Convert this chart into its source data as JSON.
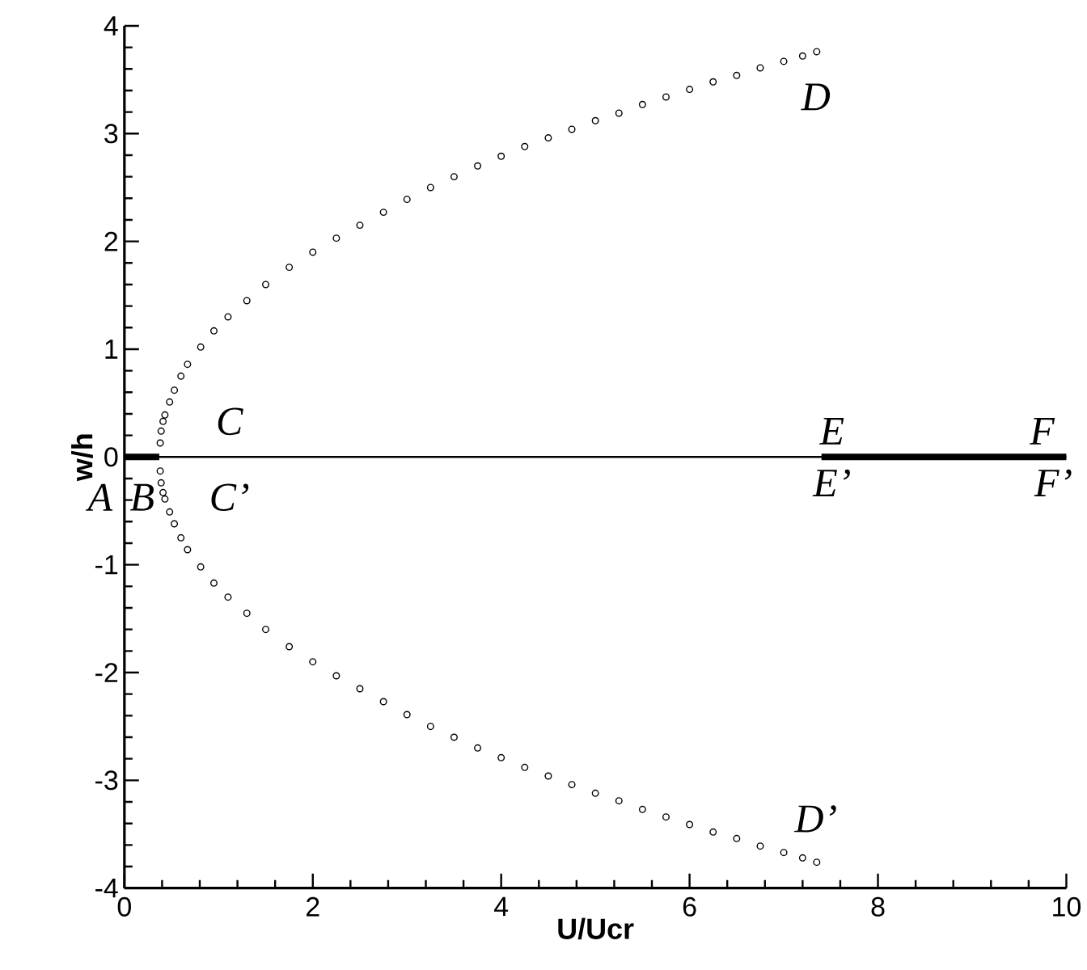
{
  "chart_data": {
    "type": "scatter",
    "xlabel": "U/Ucr",
    "ylabel": "w/h",
    "xlim": [
      0,
      10
    ],
    "ylim": [
      -4,
      4
    ],
    "xticks": [
      0,
      2,
      4,
      6,
      8,
      10
    ],
    "yticks": [
      -4,
      -3,
      -2,
      -1,
      0,
      1,
      2,
      3,
      4
    ],
    "grid": false,
    "marker": "circle",
    "series": [
      {
        "type": "line",
        "marker": "none",
        "color": "#000000",
        "x": [
          0,
          10
        ],
        "values": [
          0,
          0
        ]
      },
      {
        "type": "line",
        "marker": "none",
        "color": "#000000",
        "x": [
          0,
          0.37
        ],
        "values": [
          0,
          0
        ]
      },
      {
        "type": "line",
        "marker": "none",
        "color": "#000000",
        "x": [
          7.4,
          10
        ],
        "values": [
          0,
          0
        ]
      },
      {
        "color": "#000000",
        "x": [
          0.38,
          0.39,
          0.41,
          0.43,
          0.48,
          0.53,
          0.6,
          0.67,
          0.81,
          0.95,
          1.1,
          1.3,
          1.5,
          1.75,
          2.0,
          2.25,
          2.5,
          2.75,
          3.0,
          3.25,
          3.5,
          3.75,
          4.0,
          4.25,
          4.5,
          4.75,
          5.0,
          5.25,
          5.5,
          5.75,
          6.0,
          6.25,
          6.5,
          6.75,
          7.0,
          7.2,
          7.35
        ],
        "values": [
          0.13,
          0.24,
          0.33,
          0.39,
          0.51,
          0.62,
          0.75,
          0.86,
          1.02,
          1.17,
          1.3,
          1.45,
          1.6,
          1.76,
          1.9,
          2.03,
          2.15,
          2.27,
          2.39,
          2.5,
          2.6,
          2.7,
          2.79,
          2.88,
          2.96,
          3.04,
          3.12,
          3.19,
          3.27,
          3.34,
          3.41,
          3.48,
          3.54,
          3.61,
          3.67,
          3.72,
          3.76
        ]
      },
      {
        "color": "#000000",
        "x": [
          0.38,
          0.39,
          0.41,
          0.43,
          0.48,
          0.53,
          0.6,
          0.67,
          0.81,
          0.95,
          1.1,
          1.3,
          1.5,
          1.75,
          2.0,
          2.25,
          2.5,
          2.75,
          3.0,
          3.25,
          3.5,
          3.75,
          4.0,
          4.25,
          4.5,
          4.75,
          5.0,
          5.25,
          5.5,
          5.75,
          6.0,
          6.25,
          6.5,
          6.75,
          7.0,
          7.2,
          7.35
        ],
        "values": [
          -0.13,
          -0.24,
          -0.33,
          -0.39,
          -0.51,
          -0.62,
          -0.75,
          -0.86,
          -1.02,
          -1.17,
          -1.3,
          -1.45,
          -1.6,
          -1.76,
          -1.9,
          -2.03,
          -2.15,
          -2.27,
          -2.39,
          -2.5,
          -2.6,
          -2.7,
          -2.79,
          -2.88,
          -2.96,
          -3.04,
          -3.12,
          -3.19,
          -3.27,
          -3.34,
          -3.41,
          -3.48,
          -3.54,
          -3.61,
          -3.67,
          -3.72,
          -3.76
        ]
      }
    ],
    "annotations": [
      "A",
      "B",
      "C",
      "C’",
      "D",
      "D’",
      "E",
      "E’",
      "F",
      "F’"
    ]
  }
}
